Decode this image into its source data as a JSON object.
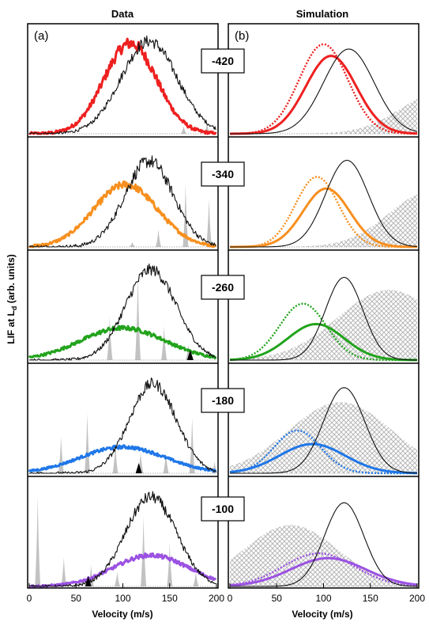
{
  "column_titles": {
    "left": "Data",
    "right": "Simulation"
  },
  "panel_letters": {
    "left": "(a)",
    "right": "(b)"
  },
  "y_axis_label": "LIF at L",
  "y_axis_label_sub": "d",
  "y_axis_label_tail": " (arb. units)",
  "x_axis_label": "Velocity (m/s)",
  "row_labels": [
    "-420",
    "-340",
    "-260",
    "-180",
    "-100"
  ],
  "colors": {
    "row_colors": [
      "#ee2020",
      "#f78f1e",
      "#22a31c",
      "#1f77e8",
      "#9b52e2"
    ],
    "reference": "#111111",
    "peaks": "#c2c2c2",
    "hatch": "#bdbdbd"
  },
  "chart_data": [
    {
      "type": "line",
      "panel": "left",
      "title": "Data",
      "xlabel": "Velocity (m/s)",
      "ylabel": "LIF at Ld (arb. units)",
      "xlim": [
        0,
        200
      ],
      "xticks": [
        "0",
        "50",
        "100",
        "150",
        "200"
      ],
      "rows": [
        {
          "label": "-420",
          "series": [
            {
              "style": "colored-thick",
              "curve": {
                "center": 108,
                "sigma": 28,
                "amp": 0.93,
                "noise": 0.05
              }
            },
            {
              "style": "black-thin",
              "curve": {
                "center": 128,
                "sigma": 30,
                "amp": 0.95,
                "noise": 0.05
              }
            }
          ],
          "peaks": [
            [
              165,
              0.08
            ],
            [
              190,
              0.12
            ]
          ],
          "markers": []
        },
        {
          "label": "-340",
          "series": [
            {
              "style": "colored-thick",
              "curve": {
                "center": 103,
                "sigma": 34,
                "amp": 0.64,
                "noise": 0.04
              }
            },
            {
              "style": "black-thin",
              "curve": {
                "center": 128,
                "sigma": 26,
                "amp": 0.88,
                "noise": 0.06
              }
            }
          ],
          "peaks": [
            [
              110,
              0.05
            ],
            [
              138,
              0.18
            ],
            [
              167,
              0.65
            ],
            [
              192,
              0.5
            ]
          ],
          "markers": []
        },
        {
          "label": "-260",
          "series": [
            {
              "style": "colored-thick",
              "curve": {
                "center": 100,
                "sigma": 45,
                "amp": 0.33,
                "noise": 0.035
              }
            },
            {
              "style": "black-thin",
              "curve": {
                "center": 130,
                "sigma": 27,
                "amp": 0.93,
                "noise": 0.05
              }
            }
          ],
          "peaks": [
            [
              86,
              0.45
            ],
            [
              116,
              0.88
            ],
            [
              144,
              0.35
            ],
            [
              170,
              0.16
            ]
          ],
          "markers": [
            172
          ]
        },
        {
          "label": "-180",
          "series": [
            {
              "style": "colored-thick",
              "curve": {
                "center": 100,
                "sigma": 45,
                "amp": 0.27,
                "noise": 0.03
              }
            },
            {
              "style": "black-thin",
              "curve": {
                "center": 132,
                "sigma": 25,
                "amp": 0.92,
                "noise": 0.05
              }
            }
          ],
          "peaks": [
            [
              10,
              0.05
            ],
            [
              34,
              0.38
            ],
            [
              62,
              0.62
            ],
            [
              92,
              0.3
            ],
            [
              119,
              0.22
            ],
            [
              146,
              0.22
            ],
            [
              174,
              0.58
            ],
            [
              198,
              0.12
            ]
          ],
          "markers": [
            117
          ]
        },
        {
          "label": "-100",
          "series": [
            {
              "style": "colored-thick",
              "curve": {
                "center": 130,
                "sigma": 40,
                "amp": 0.32,
                "noise": 0.035
              }
            },
            {
              "style": "black-thin",
              "curve": {
                "center": 130,
                "sigma": 27,
                "amp": 0.92,
                "noise": 0.05
              }
            }
          ],
          "peaks": [
            [
              9,
              0.93
            ],
            [
              37,
              0.3
            ],
            [
              66,
              0.22
            ],
            [
              94,
              0.15
            ],
            [
              122,
              0.72
            ],
            [
              150,
              0.45
            ],
            [
              178,
              0.15
            ]
          ],
          "markers": [
            63
          ]
        }
      ]
    },
    {
      "type": "line",
      "panel": "right",
      "title": "Simulation",
      "xlabel": "Velocity (m/s)",
      "xlim": [
        0,
        200
      ],
      "xticks": [
        "0",
        "50",
        "100",
        "150",
        "200"
      ],
      "rows": [
        {
          "label": "-420",
          "series": [
            {
              "style": "colored-dotted",
              "curve": {
                "center": 100,
                "sigma": 26,
                "amp": 0.92
              }
            },
            {
              "style": "colored-thick",
              "curve": {
                "center": 108,
                "sigma": 27,
                "amp": 0.8
              }
            },
            {
              "style": "black-thin",
              "curve": {
                "center": 127,
                "sigma": 27,
                "amp": 0.87
              }
            }
          ],
          "hatch": {
            "center": 230,
            "sigma": 45,
            "amp": 0.45
          }
        },
        {
          "label": "-340",
          "series": [
            {
              "style": "colored-dotted",
              "curve": {
                "center": 93,
                "sigma": 23,
                "amp": 0.72
              }
            },
            {
              "style": "colored-thick",
              "curve": {
                "center": 103,
                "sigma": 25,
                "amp": 0.6
              }
            },
            {
              "style": "black-thin",
              "curve": {
                "center": 125,
                "sigma": 23,
                "amp": 0.89
              }
            }
          ],
          "hatch": {
            "center": 215,
            "sigma": 45,
            "amp": 0.57
          }
        },
        {
          "label": "-260",
          "series": [
            {
              "style": "colored-dotted",
              "curve": {
                "center": 78,
                "sigma": 25,
                "amp": 0.58
              }
            },
            {
              "style": "colored-thick",
              "curve": {
                "center": 92,
                "sigma": 30,
                "amp": 0.37
              }
            },
            {
              "style": "black-thin",
              "curve": {
                "center": 122,
                "sigma": 20,
                "amp": 0.85
              }
            }
          ],
          "hatch": {
            "center": 170,
            "sigma": 55,
            "amp": 0.72
          }
        },
        {
          "label": "-180",
          "series": [
            {
              "style": "colored-dotted",
              "curve": {
                "center": 72,
                "sigma": 25,
                "amp": 0.44
              }
            },
            {
              "style": "colored-thick",
              "curve": {
                "center": 88,
                "sigma": 35,
                "amp": 0.3
              }
            },
            {
              "style": "black-thin",
              "curve": {
                "center": 122,
                "sigma": 22,
                "amp": 0.88
              }
            }
          ],
          "hatch": {
            "center": 118,
            "sigma": 55,
            "amp": 0.73
          }
        },
        {
          "label": "-100",
          "series": [
            {
              "style": "colored-dotted",
              "curve": {
                "center": 95,
                "sigma": 38,
                "amp": 0.34
              }
            },
            {
              "style": "colored-thick",
              "curve": {
                "center": 105,
                "sigma": 40,
                "amp": 0.29
              }
            },
            {
              "style": "black-thin",
              "curve": {
                "center": 122,
                "sigma": 21,
                "amp": 0.86
              }
            }
          ],
          "hatch": {
            "center": 65,
            "sigma": 50,
            "amp": 0.63
          }
        }
      ]
    }
  ]
}
